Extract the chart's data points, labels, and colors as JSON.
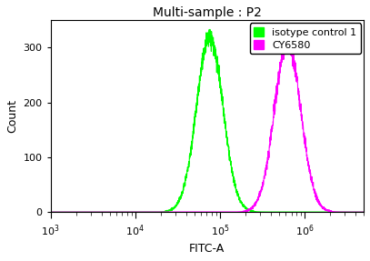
{
  "title": "Multi-sample : P2",
  "xlabel": "FITC-A",
  "ylabel": "Count",
  "ylim": [
    0,
    350
  ],
  "yticks": [
    0,
    100,
    200,
    300
  ],
  "xlim_low": 1000,
  "xlim_high": 5000000,
  "green_peak_log": 4.88,
  "green_sigma_log": 0.155,
  "green_peak_height": 318,
  "magenta_peak_log": 5.8,
  "magenta_sigma_log": 0.155,
  "magenta_peak_height": 308,
  "green_color": "#00ff00",
  "magenta_color": "#ff00ff",
  "background_color": "#ffffff",
  "legend_labels": [
    "isotype control 1",
    "CY6580"
  ],
  "legend_colors": [
    "#00ff00",
    "#ff00ff"
  ],
  "title_fontsize": 10,
  "axis_fontsize": 9,
  "tick_fontsize": 8,
  "legend_fontsize": 8,
  "noise_seed": 42,
  "n_points": 3000,
  "jaggedness": 8
}
